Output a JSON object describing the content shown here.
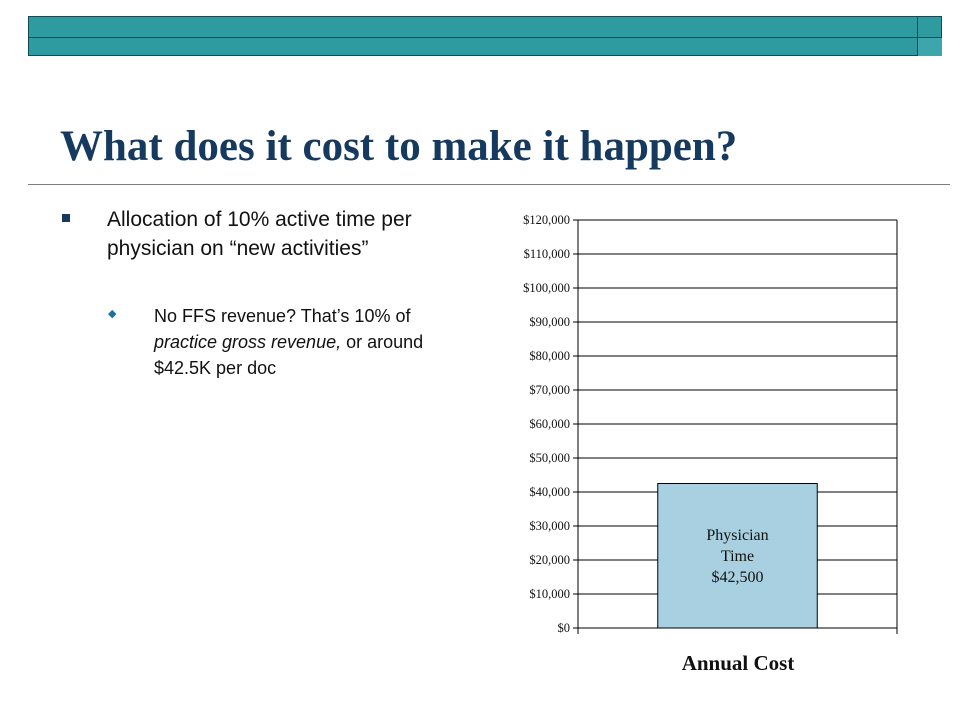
{
  "slide": {
    "title": "What does it cost to make it happen?",
    "bullet": "Allocation of 10% active time per physician on “new activities”",
    "sub_bullet": {
      "part1": "No FFS revenue? That’s 10% of ",
      "italic": "practice gross revenue,",
      "part2": " or around $42.5K per doc"
    }
  },
  "colors": {
    "banner": "#2e9ba1",
    "title": "#163a5f",
    "bar_fill": "#a8d0e0"
  },
  "chart_data": {
    "type": "bar",
    "categories": [
      "Annual Cost"
    ],
    "values": [
      42500
    ],
    "bar_label": [
      "Physician",
      "Time",
      "$42,500"
    ],
    "xlabel": "Annual Cost",
    "ylabel": "",
    "ylim": [
      0,
      120000
    ],
    "yticks": [
      "$0",
      "$10,000",
      "$20,000",
      "$30,000",
      "$40,000",
      "$50,000",
      "$60,000",
      "$70,000",
      "$80,000",
      "$90,000",
      "$100,000",
      "$110,000",
      "$120,000"
    ],
    "grid": true
  }
}
